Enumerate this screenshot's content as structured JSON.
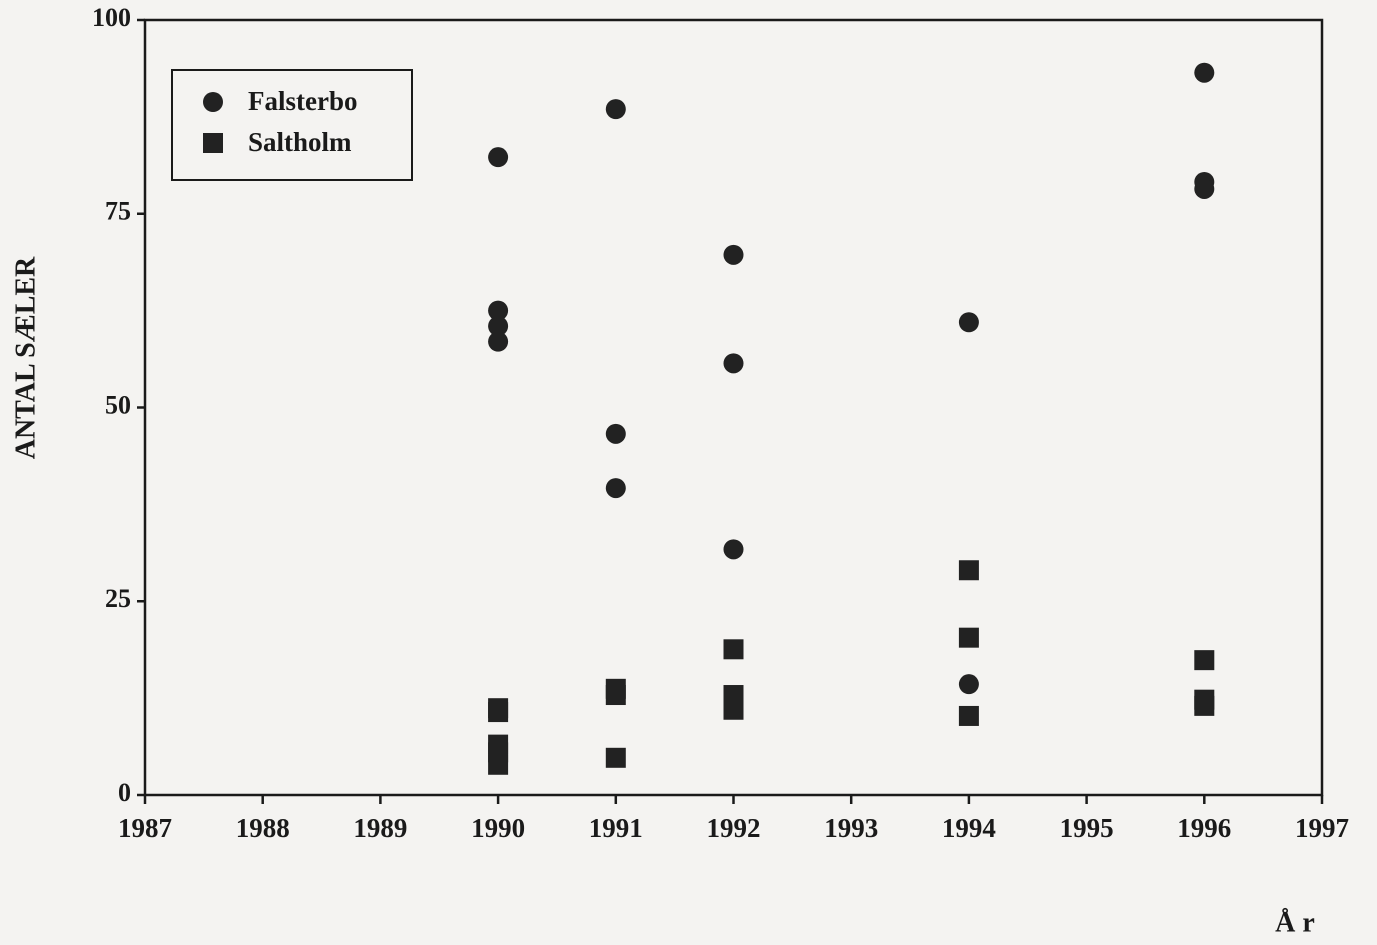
{
  "chart_data": {
    "type": "scatter",
    "xlabel": "Å r",
    "ylabel": "ANTAL SÆLER",
    "xlim": [
      1987,
      1997
    ],
    "xticks": [
      1987,
      1988,
      1989,
      1990,
      1991,
      1992,
      1993,
      1994,
      1995,
      1996,
      1997
    ],
    "ylim": [
      0,
      100
    ],
    "yticks": [
      0,
      25,
      50,
      75,
      100
    ],
    "legend": "upper left",
    "series": [
      {
        "name": "Falsterbo",
        "color": "#222222",
        "marker": "circle",
        "x": [
          1990,
          1990,
          1990,
          1990,
          1991,
          1991,
          1991,
          1992,
          1992,
          1992,
          1994,
          1994,
          1996,
          1996,
          1996
        ],
        "values": [
          82.3,
          62.5,
          60.5,
          58.5,
          88.5,
          46.6,
          39.6,
          69.7,
          55.7,
          31.7,
          61,
          14.3,
          93.2,
          79.1,
          78.2
        ]
      },
      {
        "name": "Saltholm",
        "color": "#222222",
        "marker": "square",
        "x": [
          1990,
          1990,
          1990,
          1990,
          1990,
          1991,
          1991,
          1991,
          1992,
          1992,
          1992,
          1994,
          1994,
          1994,
          1996,
          1996,
          1996
        ],
        "values": [
          11.2,
          10.7,
          6.5,
          5.5,
          3.9,
          13.7,
          12.9,
          4.8,
          18.8,
          12.9,
          11,
          29,
          20.3,
          10.2,
          17.4,
          12.3,
          11.5
        ]
      }
    ]
  }
}
